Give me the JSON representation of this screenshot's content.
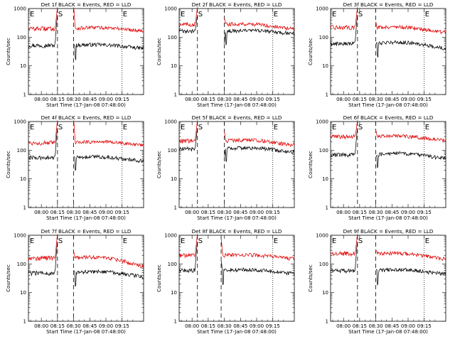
{
  "figure": {
    "panel_xlabel": "Start Time (17-Jan-08 07:48:00)",
    "panel_ylabel": "Counts/sec",
    "colors": {
      "events": "#000000",
      "lld": "#e00000",
      "axes": "#000000"
    },
    "event_markers": [
      "E",
      "S",
      "E"
    ]
  },
  "chart_data": [
    {
      "type": "line",
      "title": "Det 1f BLACK = Events, RED = LLD",
      "xlabel": "Start Time (17-Jan-08 07:48:00)",
      "ylabel": "Counts/sec",
      "y_scale": "log",
      "ylim": [
        1,
        1000
      ],
      "y_tick_labels": [
        "1",
        "10",
        "100",
        "1000"
      ],
      "x_tick_labels": [
        "08:00",
        "08:15",
        "08:30",
        "08:45",
        "09:00",
        "09:15"
      ],
      "xlim_minutes_after_start": [
        -12,
        95
      ],
      "gap_minutes": [
        15,
        30
      ],
      "markers": [
        {
          "label": "E",
          "minute": -12,
          "line": "none"
        },
        {
          "label": "S",
          "minute": 15,
          "line": "dash"
        },
        {
          "label": "",
          "minute": 30,
          "line": "dash"
        },
        {
          "label": "E",
          "minute": 75,
          "line": "dot"
        }
      ],
      "series": [
        {
          "name": "BLACK = Events",
          "start": 52,
          "end": 46,
          "wave": 5,
          "flare": 600,
          "flare2": 60
        },
        {
          "name": "RED = LLD",
          "start": 200,
          "end": 190,
          "wave": 20,
          "flare": 1100,
          "flare2": 1100
        }
      ]
    },
    {
      "type": "line",
      "title": "Det 2f BLACK = Events, RED = LLD",
      "xlabel": "Start Time (17-Jan-08 07:48:00)",
      "ylabel": "Counts/sec",
      "y_scale": "log",
      "ylim": [
        1,
        1000
      ],
      "y_tick_labels": [
        "1",
        "10",
        "100",
        "1000"
      ],
      "x_tick_labels": [
        "08:00",
        "08:15",
        "08:30",
        "08:45",
        "09:00",
        "09:15"
      ],
      "xlim_minutes_after_start": [
        -12,
        95
      ],
      "gap_minutes": [
        5,
        30
      ],
      "markers": [
        {
          "label": "E",
          "minute": -12,
          "line": "none"
        },
        {
          "label": "S",
          "minute": 5,
          "line": "dash"
        },
        {
          "label": "",
          "minute": 30,
          "line": "dash"
        },
        {
          "label": "E",
          "minute": 75,
          "line": "dot"
        }
      ],
      "series": [
        {
          "name": "BLACK = Events",
          "start": 160,
          "end": 150,
          "wave": 15,
          "flare": 600,
          "flare2": 60
        },
        {
          "name": "RED = LLD",
          "start": 280,
          "end": 220,
          "wave": 30,
          "flare": 1100,
          "flare2": 450
        }
      ]
    },
    {
      "type": "line",
      "title": "Det 3f BLACK = Events, RED = LLD",
      "xlabel": "Start Time (17-Jan-08 07:48:00)",
      "ylabel": "Counts/sec",
      "y_scale": "log",
      "ylim": [
        1,
        1000
      ],
      "y_tick_labels": [
        "1",
        "10",
        "100",
        "1000"
      ],
      "x_tick_labels": [
        "08:00",
        "08:15",
        "08:30",
        "08:45",
        "09:00",
        "09:15"
      ],
      "xlim_minutes_after_start": [
        -12,
        95
      ],
      "gap_minutes": [
        13,
        30
      ],
      "markers": [
        {
          "label": "E",
          "minute": -12,
          "line": "none"
        },
        {
          "label": "S",
          "minute": 13,
          "line": "dash"
        },
        {
          "label": "",
          "minute": 30,
          "line": "dash"
        },
        {
          "label": "E",
          "minute": 75,
          "line": "dot"
        }
      ],
      "series": [
        {
          "name": "BLACK = Events",
          "start": 60,
          "end": 50,
          "wave": 10,
          "flare": 600,
          "flare2": 60
        },
        {
          "name": "RED = LLD",
          "start": 220,
          "end": 170,
          "wave": 25,
          "flare": 1100,
          "flare2": 350
        }
      ]
    },
    {
      "type": "line",
      "title": "Det 4f BLACK = Events, RED = LLD",
      "xlabel": "Start Time (17-Jan-08 07:48:00)",
      "ylabel": "Counts/sec",
      "y_scale": "log",
      "ylim": [
        1,
        1000
      ],
      "y_tick_labels": [
        "1",
        "10",
        "100",
        "1000"
      ],
      "x_tick_labels": [
        "08:00",
        "08:15",
        "08:30",
        "08:45",
        "09:00",
        "09:15"
      ],
      "xlim_minutes_after_start": [
        -12,
        95
      ],
      "gap_minutes": [
        15,
        30
      ],
      "markers": [
        {
          "label": "E",
          "minute": -12,
          "line": "none"
        },
        {
          "label": "S",
          "minute": 15,
          "line": "dash"
        },
        {
          "label": "",
          "minute": 30,
          "line": "dash"
        },
        {
          "label": "E",
          "minute": 75,
          "line": "dot"
        }
      ],
      "series": [
        {
          "name": "BLACK = Events",
          "start": 55,
          "end": 48,
          "wave": 6,
          "flare": 600,
          "flare2": 60
        },
        {
          "name": "RED = LLD",
          "start": 180,
          "end": 170,
          "wave": 25,
          "flare": 1100,
          "flare2": 1100
        }
      ]
    },
    {
      "type": "line",
      "title": "Det 5f BLACK = Events, RED = LLD",
      "xlabel": "Start Time (17-Jan-08 07:48:00)",
      "ylabel": "Counts/sec",
      "y_scale": "log",
      "ylim": [
        1,
        1000
      ],
      "y_tick_labels": [
        "1",
        "10",
        "100",
        "1000"
      ],
      "x_tick_labels": [
        "08:00",
        "08:15",
        "08:30",
        "08:45",
        "09:00",
        "09:15"
      ],
      "xlim_minutes_after_start": [
        -12,
        95
      ],
      "gap_minutes": [
        5,
        30
      ],
      "markers": [
        {
          "label": "E",
          "minute": -12,
          "line": "none"
        },
        {
          "label": "S",
          "minute": 5,
          "line": "dash"
        },
        {
          "label": "",
          "minute": 30,
          "line": "dash"
        },
        {
          "label": "E",
          "minute": 75,
          "line": "dot"
        }
      ],
      "series": [
        {
          "name": "BLACK = Events",
          "start": 110,
          "end": 100,
          "wave": 15,
          "flare": 600,
          "flare2": 60
        },
        {
          "name": "RED = LLD",
          "start": 210,
          "end": 180,
          "wave": 30,
          "flare": 1100,
          "flare2": 450
        }
      ]
    },
    {
      "type": "line",
      "title": "Det 6f BLACK = Events, RED = LLD",
      "xlabel": "Start Time (17-Jan-08 07:48:00)",
      "ylabel": "Counts/sec",
      "y_scale": "log",
      "ylim": [
        1,
        1000
      ],
      "y_tick_labels": [
        "1",
        "10",
        "100",
        "1000"
      ],
      "x_tick_labels": [
        "08:00",
        "08:15",
        "08:30",
        "08:45",
        "09:00",
        "09:15"
      ],
      "xlim_minutes_after_start": [
        -12,
        95
      ],
      "gap_minutes": [
        13,
        30
      ],
      "markers": [
        {
          "label": "E",
          "minute": -12,
          "line": "none"
        },
        {
          "label": "S",
          "minute": 13,
          "line": "dash"
        },
        {
          "label": "",
          "minute": 30,
          "line": "dash"
        },
        {
          "label": "E",
          "minute": 75,
          "line": "dot"
        }
      ],
      "series": [
        {
          "name": "BLACK = Events",
          "start": 70,
          "end": 62,
          "wave": 10,
          "flare": 600,
          "flare2": 60
        },
        {
          "name": "RED = LLD",
          "start": 300,
          "end": 250,
          "wave": 30,
          "flare": 1100,
          "flare2": 500
        }
      ]
    },
    {
      "type": "line",
      "title": "Det 7f BLACK = Events, RED = LLD",
      "xlabel": "Start Time (17-Jan-08 07:48:00)",
      "ylabel": "Counts/sec",
      "y_scale": "log",
      "ylim": [
        1,
        1000
      ],
      "y_tick_labels": [
        "1",
        "10",
        "100",
        "1000"
      ],
      "x_tick_labels": [
        "08:00",
        "08:15",
        "08:30",
        "08:45",
        "09:00",
        "09:15"
      ],
      "xlim_minutes_after_start": [
        -12,
        95
      ],
      "gap_minutes": [
        15,
        30
      ],
      "markers": [
        {
          "label": "E",
          "minute": -12,
          "line": "none"
        },
        {
          "label": "S",
          "minute": 15,
          "line": "dash"
        },
        {
          "label": "",
          "minute": 30,
          "line": "dash"
        },
        {
          "label": "E",
          "minute": 75,
          "line": "dot"
        }
      ],
      "series": [
        {
          "name": "BLACK = Events",
          "start": 48,
          "end": 44,
          "wave": 8,
          "flare": 600,
          "flare2": 60
        },
        {
          "name": "RED = LLD",
          "start": 160,
          "end": 110,
          "wave": 30,
          "flare": 1100,
          "flare2": 280
        }
      ]
    },
    {
      "type": "line",
      "title": "Det 8f BLACK = Events, RED = LLD",
      "xlabel": "Start Time (17-Jan-08 07:48:00)",
      "ylabel": "Counts/sec",
      "y_scale": "log",
      "ylim": [
        1,
        1000
      ],
      "y_tick_labels": [
        "1",
        "10",
        "100",
        "1000"
      ],
      "x_tick_labels": [
        "08:00",
        "08:15",
        "08:30",
        "08:45",
        "09:00",
        "09:15"
      ],
      "xlim_minutes_after_start": [
        -12,
        95
      ],
      "gap_minutes": [
        5,
        27
      ],
      "markers": [
        {
          "label": "E",
          "minute": -12,
          "line": "none"
        },
        {
          "label": "S",
          "minute": 5,
          "line": "dash"
        },
        {
          "label": "",
          "minute": 27,
          "line": "dash"
        },
        {
          "label": "E",
          "minute": 75,
          "line": "dot"
        }
      ],
      "series": [
        {
          "name": "BLACK = Events",
          "start": 60,
          "end": 52,
          "wave": 6,
          "flare": 600,
          "flare2": 130
        },
        {
          "name": "RED = LLD",
          "start": 200,
          "end": 170,
          "wave": 20,
          "flare": 1100,
          "flare2": 800
        }
      ]
    },
    {
      "type": "line",
      "title": "Det 9f BLACK = Events, RED = LLD",
      "xlabel": "Start Time (17-Jan-08 07:48:00)",
      "ylabel": "Counts/sec",
      "y_scale": "log",
      "ylim": [
        1,
        1000
      ],
      "y_tick_labels": [
        "1",
        "10",
        "100",
        "1000"
      ],
      "x_tick_labels": [
        "08:00",
        "08:15",
        "08:30",
        "08:45",
        "09:00",
        "09:15"
      ],
      "xlim_minutes_after_start": [
        -12,
        95
      ],
      "gap_minutes": [
        13,
        30
      ],
      "markers": [
        {
          "label": "E",
          "minute": -12,
          "line": "none"
        },
        {
          "label": "S",
          "minute": 13,
          "line": "dash"
        },
        {
          "label": "",
          "minute": 30,
          "line": "dash"
        },
        {
          "label": "E",
          "minute": 75,
          "line": "dot"
        }
      ],
      "series": [
        {
          "name": "BLACK = Events",
          "start": 58,
          "end": 52,
          "wave": 8,
          "flare": 600,
          "flare2": 60
        },
        {
          "name": "RED = LLD",
          "start": 230,
          "end": 170,
          "wave": 25,
          "flare": 1100,
          "flare2": 320
        }
      ]
    }
  ]
}
